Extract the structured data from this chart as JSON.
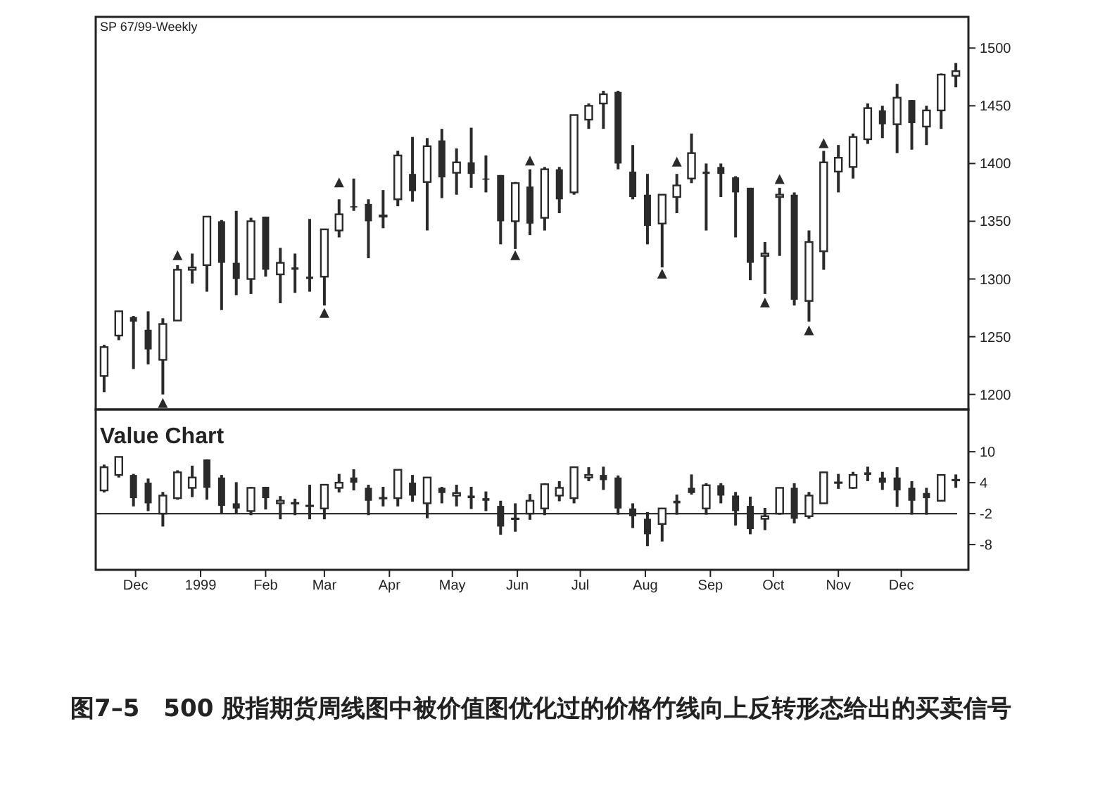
{
  "chart_data": [
    {
      "type": "candlestick",
      "title": "SP 67/99-Weekly",
      "color": "#2a2a2a",
      "tick_labels": "y",
      "x": [
        "1998-11-16",
        "1998-11-23",
        "1998-11-30",
        "1998-12-07",
        "1998-12-14",
        "1998-12-21",
        "1998-12-28",
        "1999-01-04",
        "1999-01-11",
        "1999-01-18",
        "1999-01-25",
        "1999-02-01",
        "1999-02-08",
        "1999-02-15",
        "1999-02-22",
        "1999-03-01",
        "1999-03-08",
        "1999-03-15",
        "1999-03-22",
        "1999-03-29",
        "1999-04-05",
        "1999-04-12",
        "1999-04-19",
        "1999-04-26",
        "1999-05-03",
        "1999-05-10",
        "1999-05-17",
        "1999-05-24",
        "1999-05-31",
        "1999-06-07",
        "1999-06-14",
        "1999-06-21",
        "1999-06-28",
        "1999-07-05",
        "1999-07-12",
        "1999-07-19",
        "1999-07-26",
        "1999-08-02",
        "1999-08-09",
        "1999-08-16",
        "1999-08-23",
        "1999-08-30",
        "1999-09-06",
        "1999-09-13",
        "1999-09-20",
        "1999-09-27",
        "1999-10-04",
        "1999-10-11",
        "1999-10-18",
        "1999-10-25",
        "1999-11-01",
        "1999-11-08",
        "1999-11-15",
        "1999-11-22",
        "1999-11-29",
        "1999-12-06",
        "1999-12-13",
        "1999-12-20",
        "1999-12-27"
      ],
      "ohlc": [
        [
          1216,
          1243,
          1202,
          1241
        ],
        [
          1251,
          1272,
          1247,
          1272
        ],
        [
          1267,
          1268,
          1222,
          1263
        ],
        [
          1256,
          1272,
          1226,
          1239
        ],
        [
          1230,
          1266,
          1200,
          1261
        ],
        [
          1264,
          1312,
          1264,
          1308
        ],
        [
          1308,
          1322,
          1296,
          1310
        ],
        [
          1312,
          1354,
          1289,
          1354
        ],
        [
          1350,
          1351,
          1273,
          1314
        ],
        [
          1314,
          1359,
          1286,
          1300
        ],
        [
          1300,
          1353,
          1287,
          1350
        ],
        [
          1354,
          1354,
          1302,
          1308
        ],
        [
          1304,
          1327,
          1279,
          1314
        ],
        [
          1310,
          1322,
          1288,
          1308
        ],
        [
          1302,
          1352,
          1289,
          1300
        ],
        [
          1302,
          1343,
          1277,
          1343
        ],
        [
          1342,
          1369,
          1336,
          1356
        ],
        [
          1363,
          1387,
          1359,
          1362
        ],
        [
          1365,
          1369,
          1318,
          1350
        ],
        [
          1354,
          1377,
          1344,
          1355
        ],
        [
          1369,
          1411,
          1363,
          1407
        ],
        [
          1391,
          1423,
          1367,
          1376
        ],
        [
          1384,
          1422,
          1342,
          1415
        ],
        [
          1420,
          1430,
          1370,
          1388
        ],
        [
          1392,
          1413,
          1373,
          1401
        ],
        [
          1401,
          1431,
          1379,
          1391
        ],
        [
          1387,
          1407,
          1375,
          1386
        ],
        [
          1390,
          1390,
          1330,
          1350
        ],
        [
          1350,
          1384,
          1326,
          1383
        ],
        [
          1380,
          1395,
          1338,
          1348
        ],
        [
          1353,
          1397,
          1342,
          1395
        ],
        [
          1395,
          1397,
          1357,
          1369
        ],
        [
          1375,
          1442,
          1373,
          1442
        ],
        [
          1438,
          1452,
          1430,
          1450
        ],
        [
          1452,
          1463,
          1430,
          1460
        ],
        [
          1462,
          1463,
          1395,
          1400
        ],
        [
          1393,
          1416,
          1369,
          1371
        ],
        [
          1373,
          1391,
          1330,
          1346
        ],
        [
          1348,
          1373,
          1310,
          1373
        ],
        [
          1371,
          1391,
          1357,
          1381
        ],
        [
          1387,
          1426,
          1383,
          1409
        ],
        [
          1393,
          1400,
          1342,
          1391
        ],
        [
          1397,
          1400,
          1371,
          1391
        ],
        [
          1388,
          1389,
          1336,
          1375
        ],
        [
          1379,
          1379,
          1299,
          1314
        ],
        [
          1320,
          1332,
          1287,
          1322
        ],
        [
          1371,
          1379,
          1320,
          1373
        ],
        [
          1373,
          1375,
          1277,
          1282
        ],
        [
          1281,
          1342,
          1263,
          1332
        ],
        [
          1324,
          1411,
          1308,
          1401
        ],
        [
          1393,
          1416,
          1375,
          1405
        ],
        [
          1397,
          1426,
          1387,
          1423
        ],
        [
          1421,
          1452,
          1417,
          1448
        ],
        [
          1446,
          1450,
          1422,
          1434
        ],
        [
          1434,
          1469,
          1409,
          1457
        ],
        [
          1455,
          1455,
          1412,
          1435
        ],
        [
          1432,
          1450,
          1416,
          1446
        ],
        [
          1446,
          1478,
          1430,
          1477
        ],
        [
          1476,
          1487,
          1466,
          1480
        ]
      ],
      "series": [
        {
          "type": "scatter",
          "marker": "triangle",
          "color": "#2a2a2a",
          "x": [
            "1998-12-21",
            "1999-03-08",
            "1999-06-07",
            "1999-08-16",
            "1999-10-04",
            "1999-10-25"
          ],
          "values": [
            1320,
            1383,
            1402,
            1401,
            1386,
            1417
          ]
        },
        {
          "type": "scatter",
          "marker": "triangle",
          "color": "#2a2a2a",
          "x": [
            "1998-12-14",
            "1999-03-01",
            "1999-05-31",
            "1999-08-09",
            "1999-09-27",
            "1999-10-18"
          ],
          "values": [
            1192,
            1270,
            1320,
            1304,
            1279,
            1255
          ]
        }
      ],
      "xlim": [
        "1998-11-12",
        "2000-01-02"
      ],
      "ylim": [
        1187,
        1527
      ],
      "yticks": [
        1200,
        1250,
        1300,
        1350,
        1400,
        1450,
        1500
      ]
    },
    {
      "type": "candlestick",
      "title": "Value Chart",
      "color": "#2a2a2a",
      "x": [
        "1998-11-16",
        "1998-11-23",
        "1998-11-30",
        "1998-12-07",
        "1998-12-14",
        "1998-12-21",
        "1998-12-28",
        "1999-01-04",
        "1999-01-11",
        "1999-01-18",
        "1999-01-25",
        "1999-02-01",
        "1999-02-08",
        "1999-02-15",
        "1999-02-22",
        "1999-03-01",
        "1999-03-08",
        "1999-03-15",
        "1999-03-22",
        "1999-03-29",
        "1999-04-05",
        "1999-04-12",
        "1999-04-19",
        "1999-04-26",
        "1999-05-03",
        "1999-05-10",
        "1999-05-17",
        "1999-05-24",
        "1999-05-31",
        "1999-06-07",
        "1999-06-14",
        "1999-06-21",
        "1999-06-28",
        "1999-07-05",
        "1999-07-12",
        "1999-07-19",
        "1999-07-26",
        "1999-08-02",
        "1999-08-09",
        "1999-08-16",
        "1999-08-23",
        "1999-08-30",
        "1999-09-06",
        "1999-09-13",
        "1999-09-20",
        "1999-09-27",
        "1999-10-04",
        "1999-10-11",
        "1999-10-18",
        "1999-10-25",
        "1999-11-01",
        "1999-11-08",
        "1999-11-15",
        "1999-11-22",
        "1999-11-29",
        "1999-12-06",
        "1999-12-13",
        "1999-12-20",
        "1999-12-27"
      ],
      "ohlc": [
        [
          2.5,
          7.5,
          2.1,
          7
        ],
        [
          5.5,
          9,
          5,
          9
        ],
        [
          5.5,
          5.7,
          -0.6,
          1
        ],
        [
          4,
          4.8,
          -1.5,
          0
        ],
        [
          -2,
          2.2,
          -4.5,
          1.5
        ],
        [
          1,
          6.4,
          0.7,
          6
        ],
        [
          3,
          7.3,
          1.2,
          5
        ],
        [
          8.5,
          8.5,
          0.7,
          3
        ],
        [
          5,
          5.5,
          -2.1,
          -0.5
        ],
        [
          0,
          4.1,
          -2.1,
          -1
        ],
        [
          -1.5,
          3.2,
          -2.3,
          3
        ],
        [
          3.2,
          3.2,
          -1.2,
          1
        ],
        [
          0,
          1.4,
          -3.1,
          0.5
        ],
        [
          0,
          0.9,
          -2.3,
          0
        ],
        [
          -0.5,
          3.6,
          -3.1,
          -0.5
        ],
        [
          -1,
          3.6,
          -3.1,
          3.6
        ],
        [
          3,
          5.7,
          2.1,
          4
        ],
        [
          5,
          6.6,
          2.5,
          4
        ],
        [
          3,
          3.6,
          -2.3,
          0.5
        ],
        [
          1,
          3.2,
          -0.6,
          1
        ],
        [
          1,
          6.5,
          -0.6,
          6.5
        ],
        [
          4,
          5.5,
          0.3,
          1.5
        ],
        [
          0,
          5,
          -2.9,
          5
        ],
        [
          3,
          3.2,
          0,
          2
        ],
        [
          1.5,
          3.6,
          -0.6,
          2
        ],
        [
          1.5,
          3.2,
          -1.1,
          1
        ],
        [
          1,
          2.3,
          -1.5,
          0.5
        ],
        [
          -0.5,
          0.5,
          -6.1,
          -4.5
        ],
        [
          -3,
          0,
          -5.5,
          -3
        ],
        [
          -2,
          1.8,
          -3.2,
          0.5
        ],
        [
          -1,
          3.9,
          -2.3,
          3.7
        ],
        [
          1.5,
          4.3,
          0.4,
          3
        ],
        [
          1,
          7,
          0,
          7
        ],
        [
          5,
          7,
          4.3,
          5.5
        ],
        [
          5.5,
          7.1,
          2.6,
          4.5
        ],
        [
          5,
          5.4,
          -2.2,
          -1
        ],
        [
          -1,
          0,
          -4.8,
          -2.5
        ],
        [
          -3,
          -1.7,
          -8.3,
          -6
        ],
        [
          -4,
          -1,
          -7.4,
          -1
        ],
        [
          0.5,
          1.7,
          -2.2,
          0
        ],
        [
          3,
          5.6,
          1.7,
          2
        ],
        [
          -1,
          3.9,
          -2.2,
          3.5
        ],
        [
          3.5,
          3.9,
          0,
          1.5
        ],
        [
          1.5,
          2.2,
          -4.3,
          -1.5
        ],
        [
          -0.5,
          1.3,
          -6,
          -5
        ],
        [
          -3,
          -0.9,
          -5.2,
          -2.5
        ],
        [
          -2,
          3,
          -2.2,
          3
        ],
        [
          3,
          3.9,
          -3.9,
          -3
        ],
        [
          -2.5,
          2.2,
          -3,
          1.5
        ],
        [
          0,
          6.1,
          0,
          6
        ],
        [
          4,
          5.7,
          2.8,
          4
        ],
        [
          3,
          6.1,
          2.8,
          5.5
        ],
        [
          6,
          7.1,
          4.3,
          5.5
        ],
        [
          5,
          6.1,
          2.6,
          4
        ],
        [
          5,
          7,
          -0.7,
          2.5
        ],
        [
          3,
          4.3,
          -2.2,
          0.5
        ],
        [
          2,
          3,
          -2.2,
          1
        ],
        [
          0.5,
          5.6,
          0.4,
          5.5
        ],
        [
          4.5,
          5.6,
          3,
          4.5
        ]
      ],
      "ref_lines": [
        {
          "axis": "y",
          "value": -2,
          "color": "#333333"
        }
      ],
      "xlim": [
        "1998-11-12",
        "2000-01-02"
      ],
      "xticks": [
        {
          "value": "1998-12-01",
          "label": "Dec"
        },
        {
          "value": "1999-01-01",
          "label": "1999"
        },
        {
          "value": "1999-02-01",
          "label": "Feb"
        },
        {
          "value": "1999-03-01",
          "label": "Mar"
        },
        {
          "value": "1999-04-01",
          "label": "Apr"
        },
        {
          "value": "1999-05-01",
          "label": "May"
        },
        {
          "value": "1999-06-01",
          "label": "Jun"
        },
        {
          "value": "1999-07-01",
          "label": "Jul"
        },
        {
          "value": "1999-08-01",
          "label": "Aug"
        },
        {
          "value": "1999-09-01",
          "label": "Sep"
        },
        {
          "value": "1999-10-01",
          "label": "Oct"
        },
        {
          "value": "1999-11-01",
          "label": "Nov"
        },
        {
          "value": "1999-12-01",
          "label": "Dec"
        }
      ],
      "ylim": [
        -12.9,
        18.2
      ],
      "yticks": [
        -8,
        -2,
        4,
        10
      ],
      "annotations": [
        "图7–5　500 股指期货周线图中被价值图优化过的价格竹线向上反转形态给出的买卖信号"
      ]
    }
  ]
}
